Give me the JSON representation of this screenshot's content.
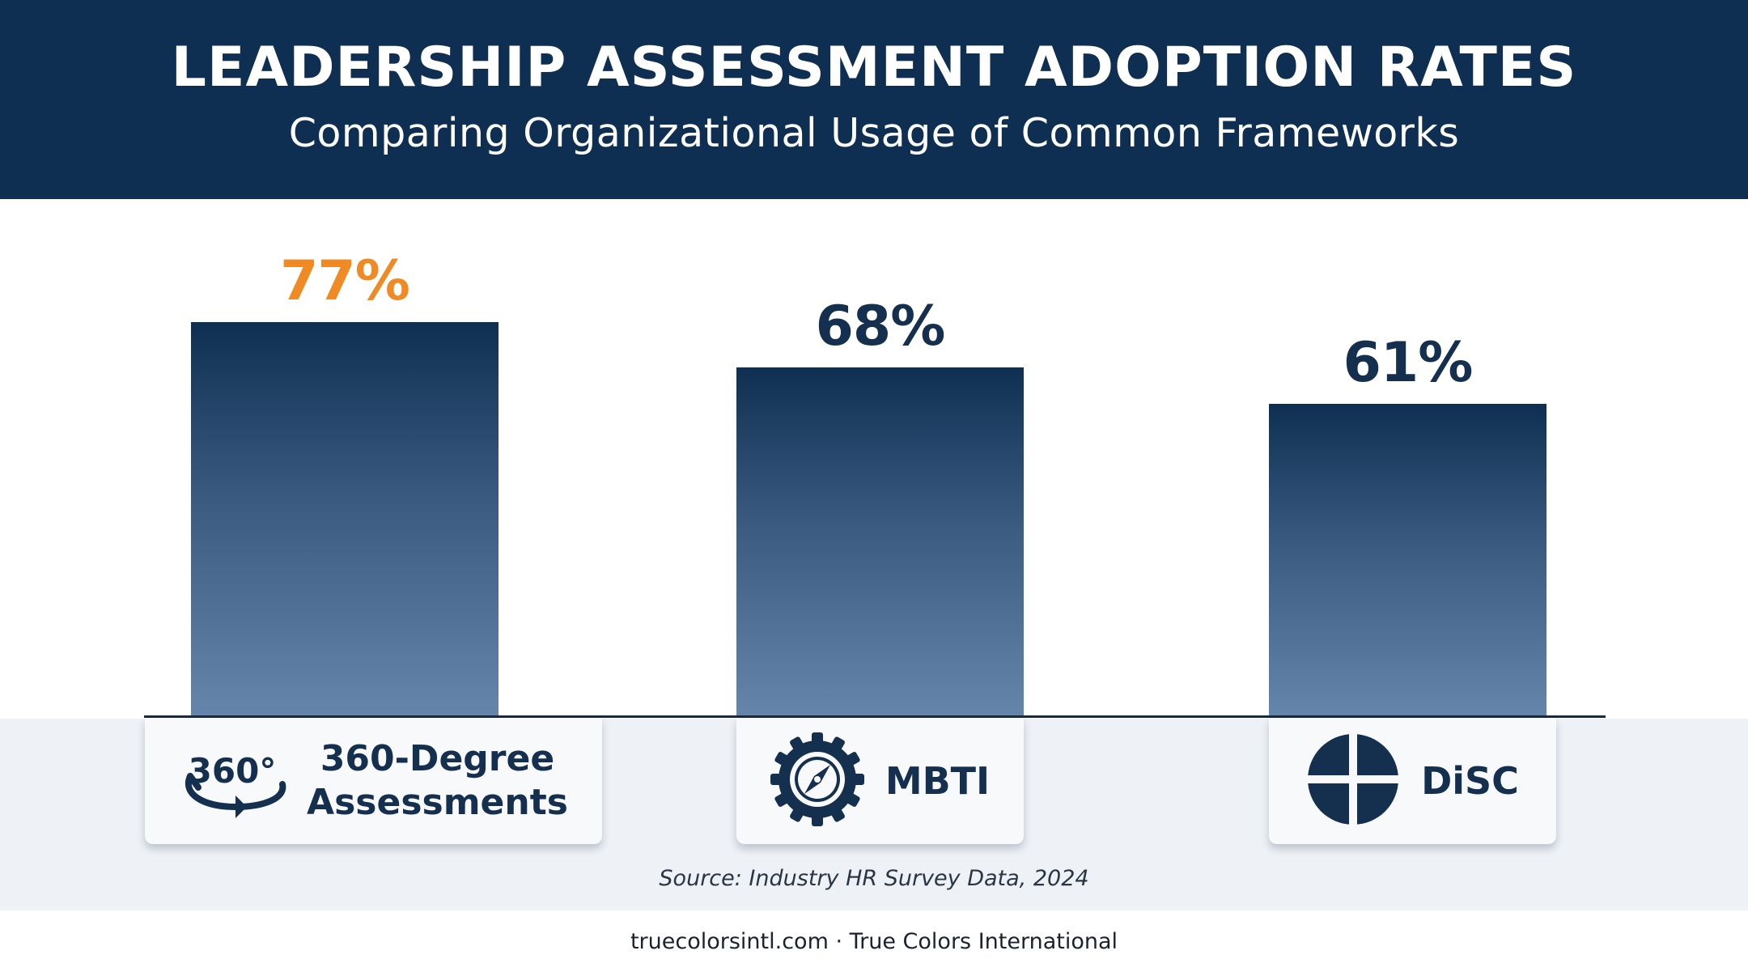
{
  "header": {
    "title": "LEADERSHIP ASSESSMENT ADOPTION RATES",
    "subtitle": "Comparing Organizational Usage of Common Frameworks"
  },
  "chart_data": {
    "type": "bar",
    "title": "LEADERSHIP ASSESSMENT ADOPTION RATES",
    "subtitle": "Comparing Organizational Usage of Common Frameworks",
    "categories": [
      "360-Degree Assessments",
      "MBTI",
      "DiSC"
    ],
    "values": [
      77,
      68,
      61
    ],
    "value_labels": [
      "77%",
      "68%",
      "61%"
    ],
    "unit": "%",
    "ylim": [
      0,
      100
    ],
    "grid": false,
    "highlight_index": 0,
    "colors": {
      "bar_top": "#0f2f52",
      "bar_bottom": "#6685aa",
      "highlight_label": "#f08a24",
      "label": "#15304f"
    }
  },
  "categories_display": [
    {
      "line1": "360-Degree",
      "line2": "Assessments",
      "icon": "360-rotate-icon"
    },
    {
      "label": "MBTI",
      "icon": "compass-icon"
    },
    {
      "label": "DiSC",
      "icon": "disc-quadrant-icon"
    }
  ],
  "icon_text": {
    "three_sixty": "360°"
  },
  "source": "Source: Industry HR Survey Data, 2024",
  "footer": "truecolorsintl.com · True Colors International",
  "colors": {
    "header_bg": "#0f2f52",
    "band_bg": "#eef1f6",
    "accent": "#f08a24"
  }
}
